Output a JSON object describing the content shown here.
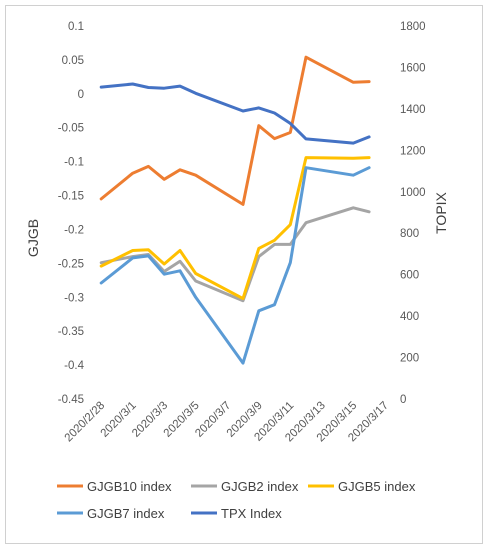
{
  "chart_data": {
    "type": "line",
    "title": "",
    "x": [
      "2020/2/28",
      "2020/2/29",
      "2020/3/1",
      "2020/3/2",
      "2020/3/3",
      "2020/3/4",
      "2020/3/5",
      "2020/3/6",
      "2020/3/7",
      "2020/3/8",
      "2020/3/9",
      "2020/3/10",
      "2020/3/11",
      "2020/3/12",
      "2020/3/13",
      "2020/3/14",
      "2020/3/15",
      "2020/3/16",
      "2020/3/17"
    ],
    "x_tick_labels": [
      "2020/2/28",
      "2020/3/1",
      "2020/3/3",
      "2020/3/5",
      "2020/3/7",
      "2020/3/9",
      "2020/3/11",
      "2020/3/13",
      "2020/3/15",
      "2020/3/17"
    ],
    "y_left": {
      "label": "GJGB",
      "ylim": [
        -0.45,
        0.1
      ],
      "ticks": [
        "0.1",
        "0.05",
        "0",
        "-0.05",
        "-0.1",
        "-0.15",
        "-0.2",
        "-0.25",
        "-0.3",
        "-0.35",
        "-0.4",
        "-0.45"
      ]
    },
    "y_right": {
      "label": "TOPIX",
      "ylim": [
        0,
        1800
      ],
      "ticks": [
        "1800",
        "1600",
        "1400",
        "1200",
        "1000",
        "800",
        "600",
        "400",
        "200",
        "0"
      ]
    },
    "grid": false,
    "legend_position": "bottom",
    "series": [
      {
        "name": "GJGB10 index",
        "axis": "left",
        "color": "#ED7D31",
        "points": [
          [
            0,
            -0.155
          ],
          [
            2,
            -0.117
          ],
          [
            3,
            -0.107
          ],
          [
            4,
            -0.126
          ],
          [
            5,
            -0.112
          ],
          [
            6,
            -0.12
          ],
          [
            9,
            -0.163
          ],
          [
            10,
            -0.047
          ],
          [
            11,
            -0.066
          ],
          [
            12,
            -0.057
          ],
          [
            13,
            0.054
          ],
          [
            16,
            0.017
          ],
          [
            17,
            0.018
          ]
        ]
      },
      {
        "name": "GJGB2 index",
        "axis": "left",
        "color": "#A5A5A5",
        "points": [
          [
            0,
            -0.249
          ],
          [
            2,
            -0.24
          ],
          [
            3,
            -0.237
          ],
          [
            4,
            -0.262
          ],
          [
            5,
            -0.247
          ],
          [
            6,
            -0.276
          ],
          [
            9,
            -0.305
          ],
          [
            10,
            -0.24
          ],
          [
            11,
            -0.222
          ],
          [
            12,
            -0.222
          ],
          [
            13,
            -0.19
          ],
          [
            16,
            -0.168
          ],
          [
            17,
            -0.174
          ]
        ]
      },
      {
        "name": "GJGB5 index",
        "axis": "left",
        "color": "#FFC000",
        "points": [
          [
            0,
            -0.254
          ],
          [
            2,
            -0.231
          ],
          [
            3,
            -0.23
          ],
          [
            4,
            -0.251
          ],
          [
            5,
            -0.231
          ],
          [
            6,
            -0.265
          ],
          [
            9,
            -0.302
          ],
          [
            10,
            -0.228
          ],
          [
            11,
            -0.216
          ],
          [
            12,
            -0.193
          ],
          [
            13,
            -0.094
          ],
          [
            16,
            -0.095
          ],
          [
            17,
            -0.094
          ]
        ]
      },
      {
        "name": "GJGB7 index",
        "axis": "left",
        "color": "#5B9BD5",
        "points": [
          [
            0,
            -0.279
          ],
          [
            2,
            -0.242
          ],
          [
            3,
            -0.239
          ],
          [
            4,
            -0.266
          ],
          [
            5,
            -0.261
          ],
          [
            6,
            -0.3
          ],
          [
            9,
            -0.397
          ],
          [
            10,
            -0.32
          ],
          [
            11,
            -0.311
          ],
          [
            12,
            -0.249
          ],
          [
            13,
            -0.109
          ],
          [
            16,
            -0.12
          ],
          [
            17,
            -0.109
          ]
        ]
      },
      {
        "name": "TPX Index",
        "axis": "right",
        "color": "#4472C4",
        "points": [
          [
            0,
            1505
          ],
          [
            2,
            1520
          ],
          [
            3,
            1503
          ],
          [
            4,
            1500
          ],
          [
            5,
            1510
          ],
          [
            6,
            1475
          ],
          [
            9,
            1390
          ],
          [
            10,
            1405
          ],
          [
            11,
            1380
          ],
          [
            12,
            1330
          ],
          [
            13,
            1255
          ],
          [
            16,
            1235
          ],
          [
            17,
            1265
          ]
        ]
      }
    ]
  }
}
